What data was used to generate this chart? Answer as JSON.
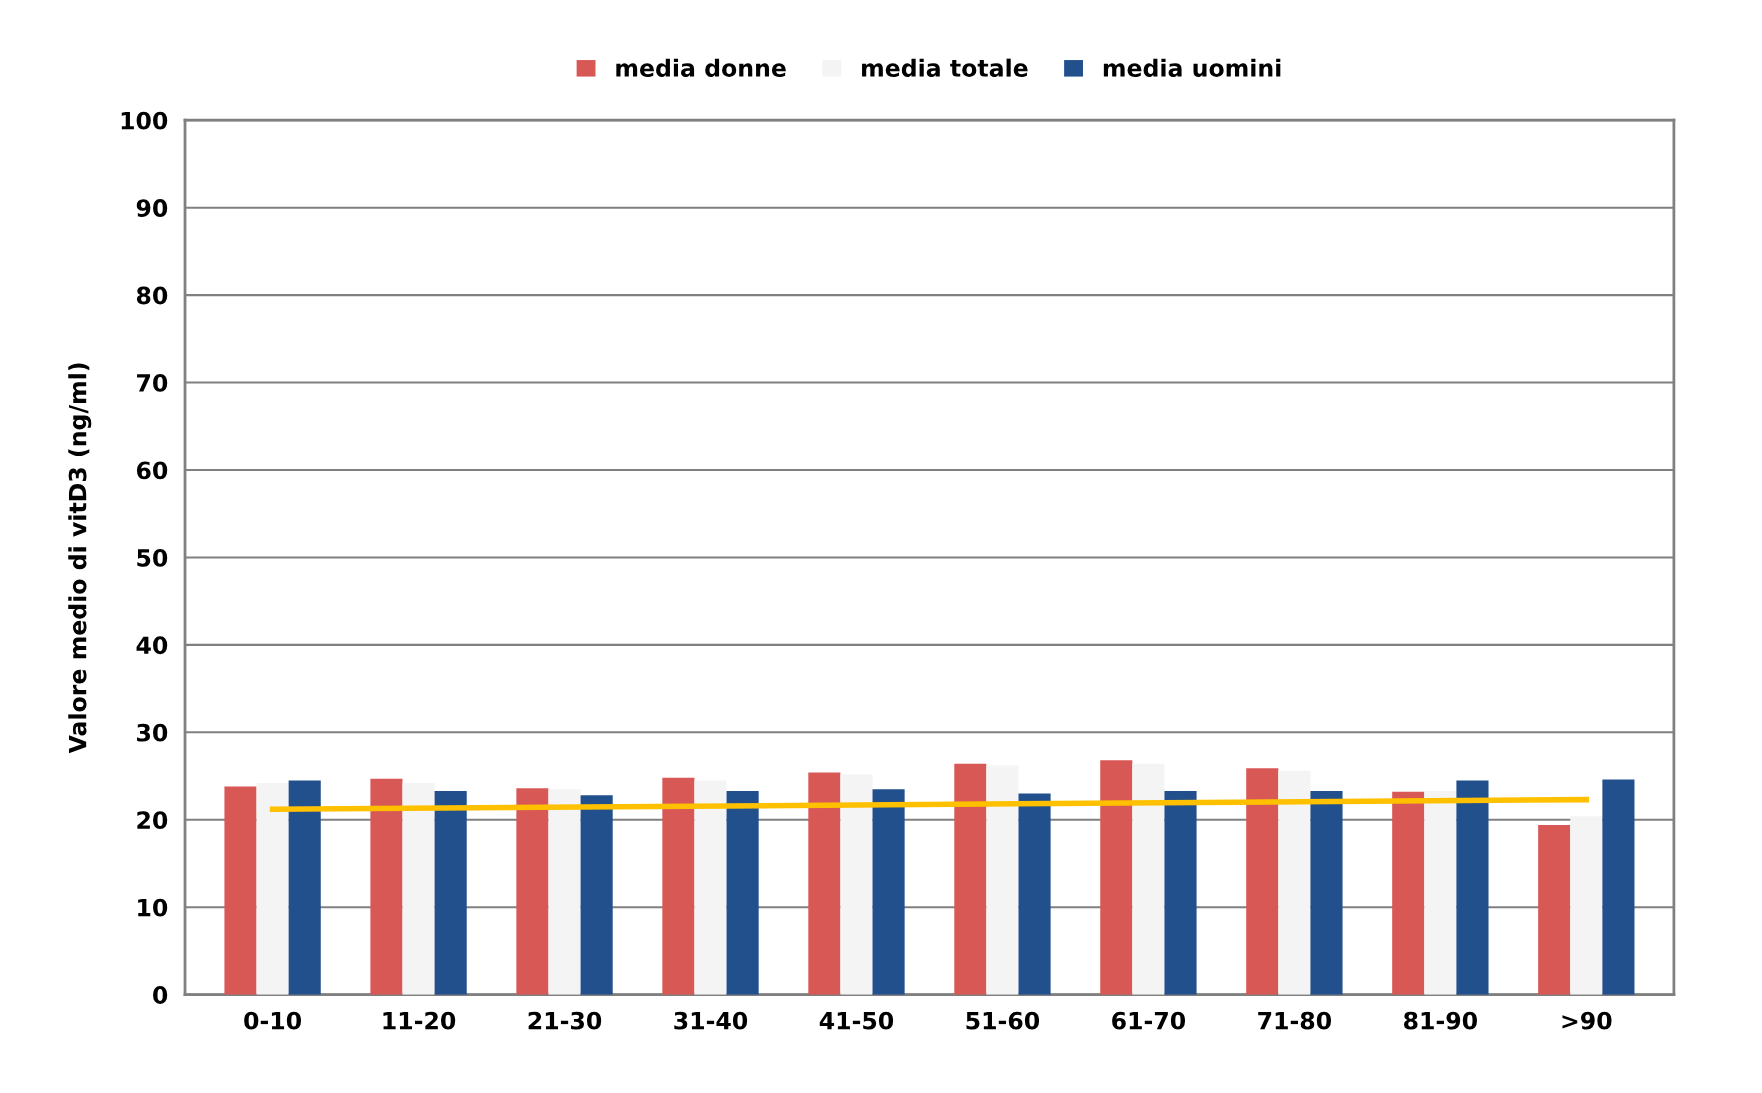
{
  "chart_data": {
    "type": "bar",
    "ylabel": "Valore medio di vitD3 (ng/ml)",
    "categories": [
      "0-10",
      "11-20",
      "21-30",
      "31-40",
      "41-50",
      "51-60",
      "61-70",
      "71-80",
      "81-90",
      ">90"
    ],
    "series": [
      {
        "name": "media donne",
        "color": "#d85856",
        "values": [
          23.8,
          24.7,
          23.6,
          24.8,
          25.4,
          26.4,
          26.8,
          25.9,
          23.2,
          19.4
        ]
      },
      {
        "name": "media totale",
        "color": "#f4f4f4",
        "values": [
          24.2,
          24.2,
          23.5,
          24.5,
          25.2,
          26.2,
          26.4,
          25.6,
          23.3,
          20.4
        ]
      },
      {
        "name": "media uomini",
        "color": "#21508d",
        "values": [
          24.5,
          23.3,
          22.8,
          23.3,
          23.5,
          23.0,
          23.3,
          23.3,
          24.5,
          24.6
        ]
      },
      {
        "type": "line",
        "color": "#ffc000",
        "x": [
          "0-10",
          ">90"
        ],
        "values": [
          21.2,
          22.3
        ]
      }
    ],
    "ylim": [
      0,
      100
    ],
    "yticks": [
      0,
      10,
      20,
      30,
      40,
      50,
      60,
      70,
      80,
      90,
      100
    ],
    "grid": "y",
    "legend": "top"
  }
}
